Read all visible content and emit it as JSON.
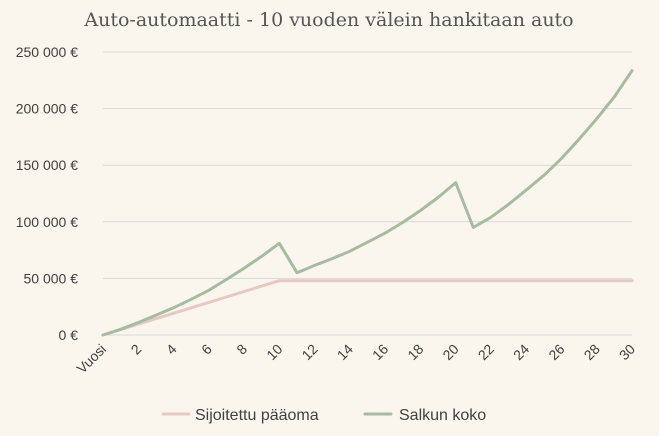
{
  "chart_data": {
    "type": "line",
    "title": "Auto-automaatti - 10 vuoden välein hankitaan auto",
    "xlabel": "",
    "ylabel": "",
    "x_first_label": "Vuosi",
    "x": [
      0,
      1,
      2,
      3,
      4,
      5,
      6,
      7,
      8,
      9,
      10,
      11,
      12,
      13,
      14,
      15,
      16,
      17,
      18,
      19,
      20,
      21,
      22,
      23,
      24,
      25,
      26,
      27,
      28,
      29,
      30
    ],
    "x_tick_labels": [
      "Vuosi",
      "2",
      "4",
      "6",
      "8",
      "10",
      "12",
      "14",
      "16",
      "18",
      "20",
      "22",
      "24",
      "26",
      "28",
      "30"
    ],
    "y_tick_labels": [
      "0 €",
      "50 000 €",
      "100 000 €",
      "150 000 €",
      "200 000 €",
      "250 000 €"
    ],
    "y_ticks": [
      0,
      50000,
      100000,
      150000,
      200000,
      250000
    ],
    "ylim": [
      0,
      250000
    ],
    "grid": true,
    "legend_position": "bottom",
    "series": [
      {
        "name": "Sijoitettu pääoma",
        "color": "#e6c8c4",
        "values": [
          0,
          4800,
          9600,
          14400,
          19200,
          24000,
          28800,
          33600,
          38400,
          43200,
          48000,
          48000,
          48000,
          48000,
          48000,
          48000,
          48000,
          48000,
          48000,
          48000,
          48000,
          48000,
          48000,
          48000,
          48000,
          48000,
          48000,
          48000,
          48000,
          48000,
          48000
        ]
      },
      {
        "name": "Salkun koko",
        "color": "#a7bba2",
        "values": [
          0,
          5000,
          11000,
          17500,
          24000,
          31500,
          39500,
          49000,
          59000,
          69500,
          81000,
          55000,
          61500,
          67500,
          74000,
          82000,
          90000,
          99500,
          110000,
          121500,
          134500,
          95000,
          104000,
          115500,
          128000,
          141000,
          156000,
          173000,
          191000,
          210500,
          233500
        ]
      }
    ]
  }
}
